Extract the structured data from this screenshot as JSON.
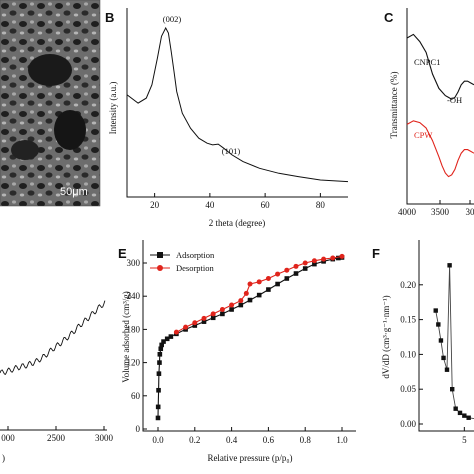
{
  "panels": {
    "A": {
      "letter": "",
      "scale_bar": "50μm"
    },
    "B": {
      "letter": "B",
      "xlabel": "2 theta (degree)",
      "ylabel": "Intensity (a.u.)",
      "xticks": [
        "20",
        "40",
        "60",
        "80"
      ],
      "peaks": [
        "(002)",
        "(101)"
      ]
    },
    "C": {
      "letter": "C",
      "ylabel": "Transmittance (%)",
      "xticks": [
        "4000",
        "3500",
        "30"
      ],
      "series": [
        "CNPC1",
        "CPW"
      ],
      "annotation": "-OH",
      "series_colors": [
        "#111111",
        "#e0241c"
      ]
    },
    "D": {
      "letter": "",
      "ylabel_fragment": ")",
      "xticks": [
        "000",
        "2500",
        "3000"
      ]
    },
    "E": {
      "letter": "E",
      "xlabel": "Relative pressure (p/p₀)",
      "ylabel": "Volume adsorbed (cm³/g)",
      "yticks": [
        "0",
        "60",
        "120",
        "180",
        "240",
        "300"
      ],
      "xticks": [
        "0.0",
        "0.2",
        "0.4",
        "0.6",
        "0.8",
        "1.0"
      ]
    },
    "F": {
      "letter": "F",
      "ylabel": "dV/dD (cm³·g⁻¹·nm⁻¹)",
      "yticks": [
        "0.00",
        "0.05",
        "0.10",
        "0.15",
        "0.20"
      ],
      "xticks": [
        "5"
      ]
    }
  },
  "chart_data": [
    {
      "panel": "B",
      "type": "line",
      "xlabel": "2 theta (degree)",
      "ylabel": "Intensity (a.u.)",
      "xlim": [
        10,
        90
      ],
      "x": [
        10,
        14,
        17,
        19,
        21,
        22.5,
        24,
        25,
        26,
        27,
        28,
        30,
        33,
        36,
        39,
        41,
        43,
        45,
        48,
        52,
        58,
        65,
        72,
        80,
        90
      ],
      "values": [
        0.6,
        0.55,
        0.58,
        0.66,
        0.82,
        0.95,
        1.0,
        0.97,
        0.86,
        0.74,
        0.62,
        0.49,
        0.4,
        0.34,
        0.31,
        0.3,
        0.305,
        0.28,
        0.24,
        0.2,
        0.16,
        0.13,
        0.11,
        0.09,
        0.08
      ]
    },
    {
      "panel": "C",
      "type": "line",
      "xlim": [
        4000,
        2950
      ],
      "series": [
        {
          "name": "CNPC1",
          "color": "#111111",
          "x": [
            4000,
            3900,
            3800,
            3700,
            3600,
            3500,
            3450,
            3400,
            3350,
            3300,
            3250,
            3200,
            3150,
            3100,
            3050,
            3000,
            2950
          ],
          "values": [
            0.9,
            0.92,
            0.88,
            0.82,
            0.7,
            0.62,
            0.6,
            0.58,
            0.57,
            0.56,
            0.57,
            0.6,
            0.64,
            0.66,
            0.66,
            0.65,
            0.64
          ]
        },
        {
          "name": "CPW",
          "color": "#e0241c",
          "x": [
            4000,
            3900,
            3800,
            3700,
            3600,
            3500,
            3450,
            3400,
            3350,
            3300,
            3250,
            3200,
            3150,
            3100,
            3050,
            3000,
            2950
          ],
          "values": [
            0.42,
            0.44,
            0.43,
            0.4,
            0.33,
            0.24,
            0.19,
            0.15,
            0.13,
            0.14,
            0.17,
            0.22,
            0.26,
            0.28,
            0.28,
            0.27,
            0.26
          ]
        }
      ]
    },
    {
      "panel": "D",
      "type": "line",
      "xlim": [
        1800,
        3000
      ],
      "x": [
        1800,
        1900,
        2000,
        2100,
        2200,
        2300,
        2400,
        2500,
        2600,
        2700,
        2800,
        2900,
        3000
      ],
      "values": [
        0.2,
        0.22,
        0.25,
        0.27,
        0.3,
        0.35,
        0.42,
        0.48,
        0.55,
        0.63,
        0.7,
        0.78,
        0.85
      ]
    },
    {
      "panel": "E",
      "type": "line",
      "xlabel": "Relative pressure (p/p₀)",
      "ylabel": "Volume adsorbed (cm³/g)",
      "xlim": [
        -0.1,
        1.1
      ],
      "ylim": [
        0,
        330
      ],
      "series": [
        {
          "name": "Adsorption",
          "color": "#111111",
          "x": [
            0.0,
            0.001,
            0.003,
            0.005,
            0.008,
            0.01,
            0.015,
            0.02,
            0.03,
            0.05,
            0.07,
            0.1,
            0.15,
            0.2,
            0.25,
            0.3,
            0.35,
            0.4,
            0.45,
            0.5,
            0.55,
            0.6,
            0.65,
            0.7,
            0.75,
            0.8,
            0.85,
            0.9,
            0.95,
            0.98,
            1.0
          ],
          "values": [
            20,
            40,
            70,
            100,
            120,
            135,
            145,
            152,
            158,
            163,
            167,
            172,
            180,
            187,
            194,
            201,
            208,
            216,
            224,
            233,
            242,
            252,
            262,
            272,
            281,
            290,
            298,
            303,
            307,
            309,
            310
          ]
        },
        {
          "name": "Desorption",
          "color": "#e0241c",
          "x": [
            0.1,
            0.15,
            0.2,
            0.25,
            0.3,
            0.35,
            0.4,
            0.45,
            0.48,
            0.5,
            0.55,
            0.6,
            0.65,
            0.7,
            0.75,
            0.8,
            0.85,
            0.9,
            0.95,
            1.0
          ],
          "values": [
            175,
            184,
            192,
            200,
            208,
            216,
            224,
            232,
            245,
            262,
            266,
            272,
            280,
            287,
            294,
            300,
            304,
            307,
            309,
            312
          ]
        }
      ]
    },
    {
      "panel": "F",
      "type": "line",
      "ylabel": "dV/dD (cm³·g⁻¹·nm⁻¹)",
      "xlim": [
        0,
        7.5
      ],
      "ylim": [
        -0.01,
        0.26
      ],
      "x": [
        1.7,
        2.0,
        2.3,
        2.6,
        3.0,
        3.3,
        3.6,
        4.0,
        4.5,
        5.0,
        5.5,
        6.0,
        6.5,
        7.0,
        7.5
      ],
      "values": [
        0.163,
        0.143,
        0.12,
        0.095,
        0.078,
        0.228,
        0.05,
        0.022,
        0.016,
        0.012,
        0.009,
        0.008,
        0.007,
        0.006,
        0.006
      ]
    }
  ]
}
